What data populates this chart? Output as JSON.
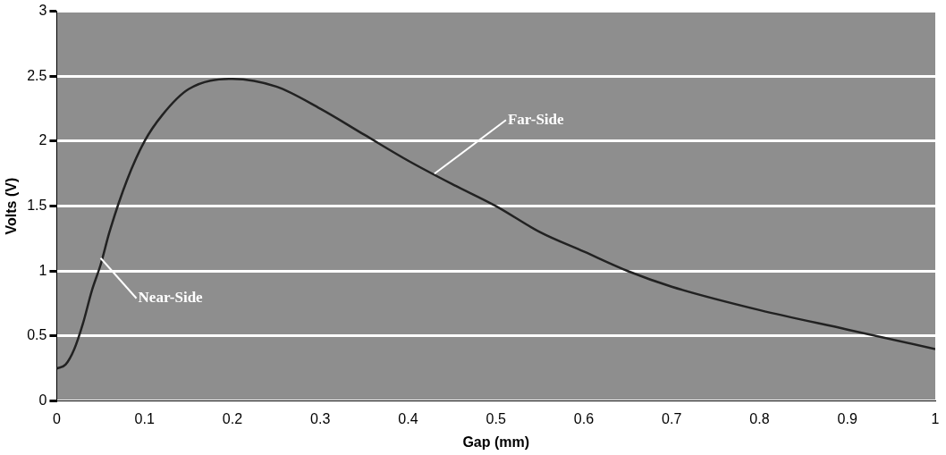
{
  "chart_data": {
    "type": "line",
    "xlabel": "Gap (mm)",
    "ylabel": "Volts (V)",
    "xlim": [
      0,
      1
    ],
    "xticks": [
      0,
      0.1,
      0.2,
      0.3,
      0.4,
      0.5,
      0.6,
      0.7,
      0.8,
      0.9,
      1
    ],
    "ylim": [
      0,
      3
    ],
    "yticks": [
      0,
      0.5,
      1,
      1.5,
      2,
      2.5,
      3
    ],
    "grid": "y",
    "marker": "none",
    "line_style": "solid",
    "series": [
      {
        "color": "#222222",
        "x": [
          0,
          0.01,
          0.02,
          0.03,
          0.04,
          0.05,
          0.06,
          0.08,
          0.1,
          0.12,
          0.15,
          0.2,
          0.25,
          0.3,
          0.35,
          0.4,
          0.45,
          0.5,
          0.55,
          0.6,
          0.65,
          0.7,
          0.8,
          0.9,
          1
        ],
        "values": [
          0.25,
          0.28,
          0.4,
          0.6,
          0.85,
          1.05,
          1.3,
          1.7,
          2.0,
          2.2,
          2.4,
          2.48,
          2.42,
          2.25,
          2.05,
          1.85,
          1.67,
          1.5,
          1.3,
          1.15,
          1.0,
          0.88,
          0.7,
          0.55,
          0.4
        ]
      }
    ],
    "annotations": [
      {
        "text": "Far-Side",
        "x": 0.43,
        "y": 1.75
      },
      {
        "text": "Near-Side",
        "x": 0.05,
        "y": 1.1
      }
    ]
  }
}
